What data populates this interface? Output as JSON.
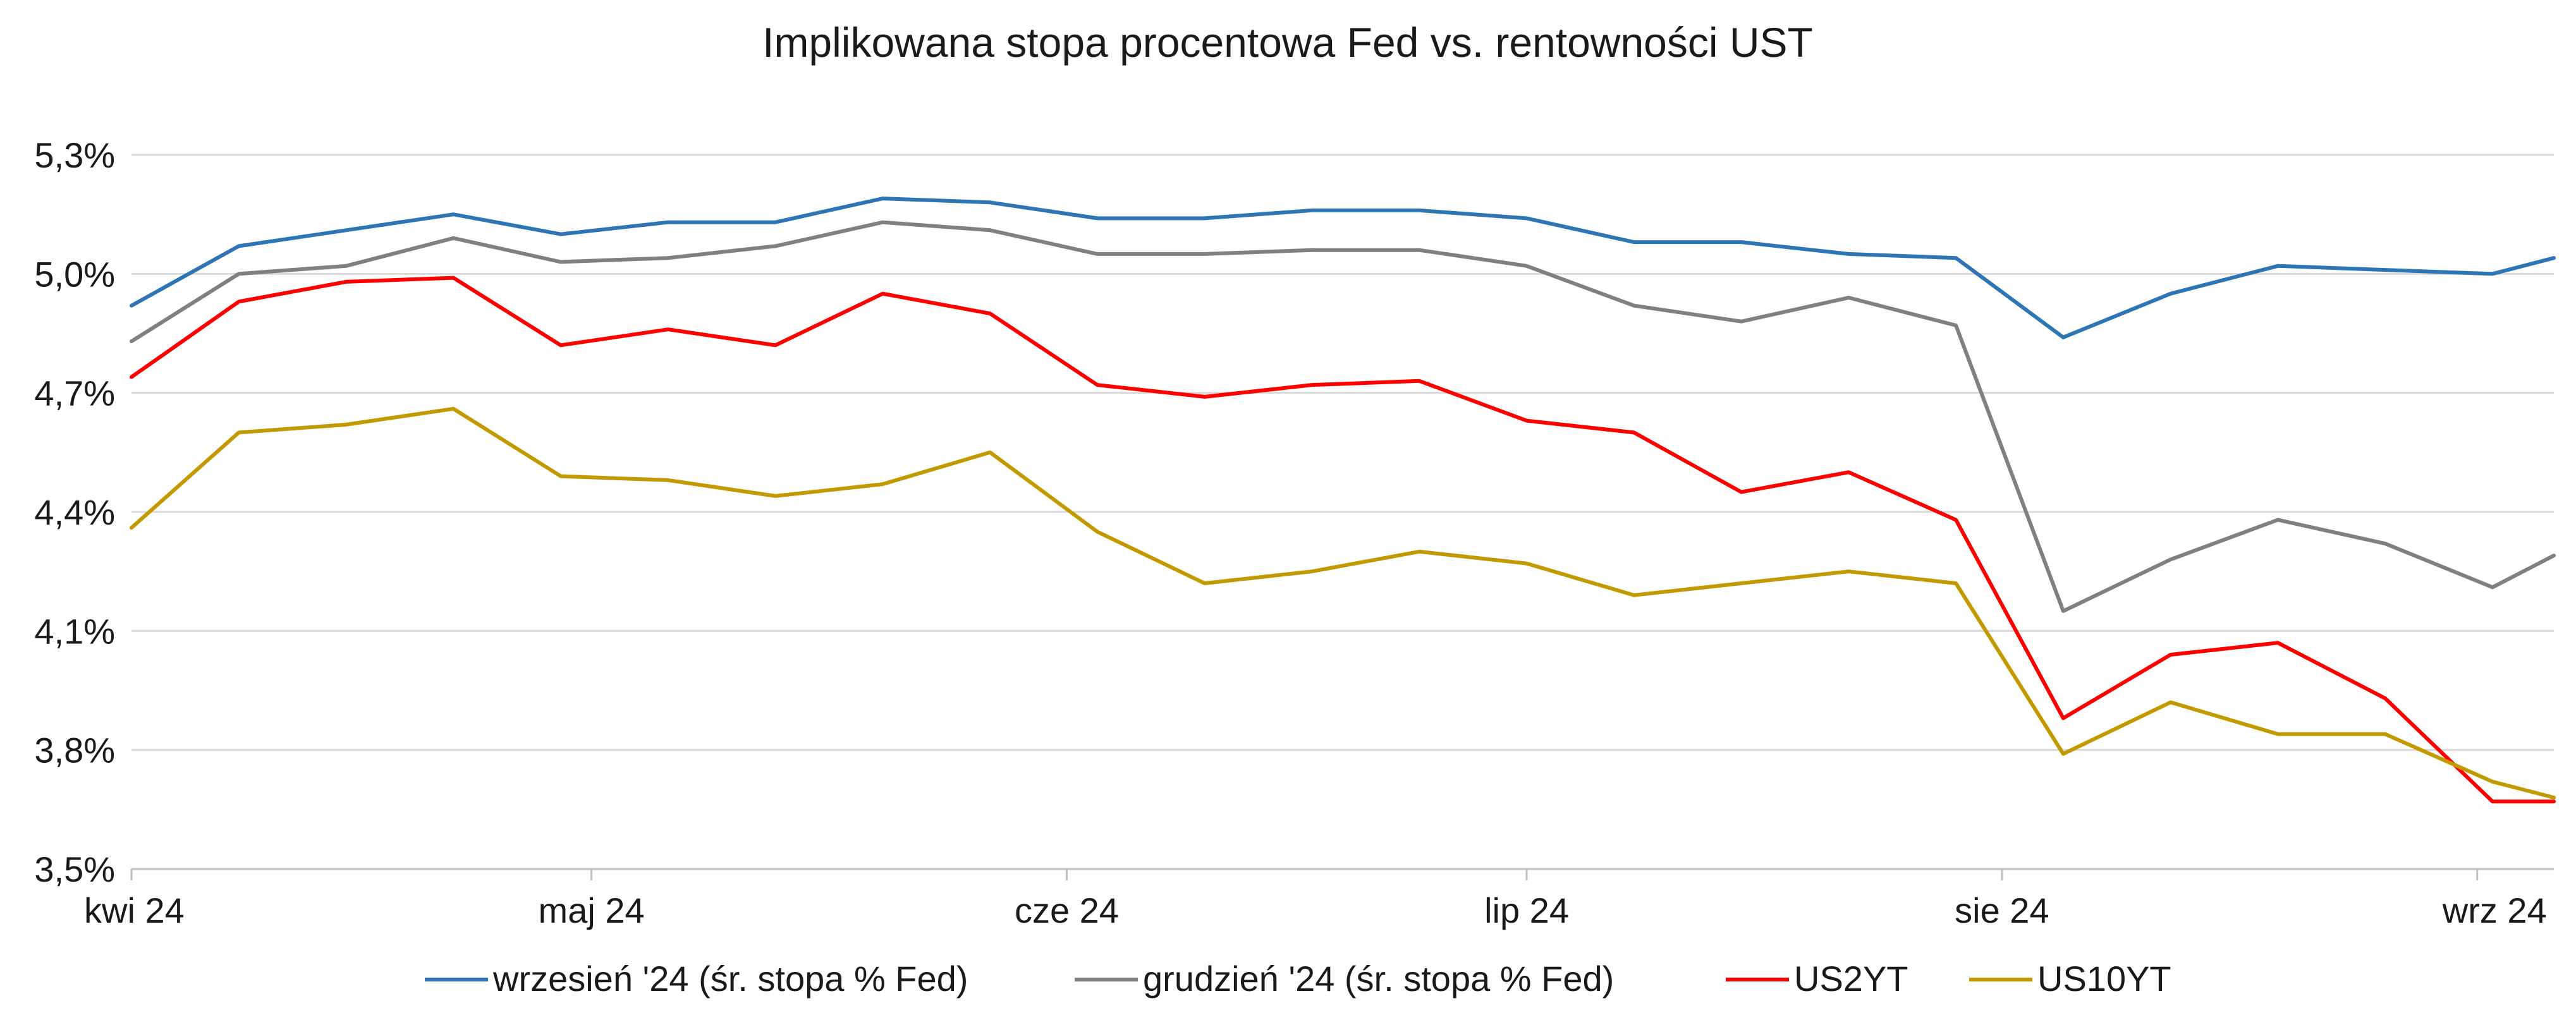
{
  "chart_data": {
    "type": "line",
    "title": "Implikowana stopa procentowa Fed vs. rentowności UST",
    "xlabel": "",
    "ylabel": "",
    "ylim": [
      3.5,
      5.3
    ],
    "yticks": [
      {
        "value": 3.5,
        "label": "3,5%"
      },
      {
        "value": 3.8,
        "label": "3,8%"
      },
      {
        "value": 4.1,
        "label": "4,1%"
      },
      {
        "value": 4.4,
        "label": "4,4%"
      },
      {
        "value": 4.7,
        "label": "4,7%"
      },
      {
        "value": 5.0,
        "label": "5,0%"
      },
      {
        "value": 5.3,
        "label": "5,3%"
      }
    ],
    "xlim": [
      "2024-04-01",
      "2024-09-06"
    ],
    "xticks": [
      {
        "date": "2024-04-01",
        "label": "kwi 24"
      },
      {
        "date": "2024-05-01",
        "label": "maj 24"
      },
      {
        "date": "2024-06-01",
        "label": "cze 24"
      },
      {
        "date": "2024-07-01",
        "label": "lip 24"
      },
      {
        "date": "2024-08-01",
        "label": "sie 24"
      },
      {
        "date": "2024-09-01",
        "label": "wrz 24"
      }
    ],
    "grid": true,
    "legend": "bottom",
    "x": [
      "2024-04-01",
      "2024-04-08",
      "2024-04-15",
      "2024-04-22",
      "2024-04-29",
      "2024-05-06",
      "2024-05-13",
      "2024-05-20",
      "2024-05-27",
      "2024-06-03",
      "2024-06-10",
      "2024-06-17",
      "2024-06-24",
      "2024-07-01",
      "2024-07-08",
      "2024-07-15",
      "2024-07-22",
      "2024-07-29",
      "2024-08-05",
      "2024-08-12",
      "2024-08-19",
      "2024-08-26",
      "2024-09-02",
      "2024-09-06"
    ],
    "series": [
      {
        "name": "wrzesień '24 (śr. stopa % Fed)",
        "color": "#2e75b6",
        "values": [
          4.92,
          5.07,
          5.11,
          5.15,
          5.1,
          5.13,
          5.13,
          5.19,
          5.18,
          5.14,
          5.14,
          5.16,
          5.16,
          5.14,
          5.08,
          5.08,
          5.05,
          5.04,
          4.84,
          4.95,
          5.02,
          5.01,
          5.0,
          5.04
        ]
      },
      {
        "name": "grudzień '24 (śr. stopa % Fed)",
        "color": "#808080",
        "values": [
          4.83,
          5.0,
          5.02,
          5.09,
          5.03,
          5.04,
          5.07,
          5.13,
          5.11,
          5.05,
          5.05,
          5.06,
          5.06,
          5.02,
          4.92,
          4.88,
          4.94,
          4.87,
          4.15,
          4.28,
          4.38,
          4.32,
          4.21,
          4.29
        ]
      },
      {
        "name": "US2YT",
        "color": "#ff0000",
        "values": [
          4.74,
          4.93,
          4.98,
          4.99,
          4.82,
          4.86,
          4.82,
          4.95,
          4.9,
          4.72,
          4.69,
          4.72,
          4.73,
          4.63,
          4.6,
          4.45,
          4.5,
          4.38,
          3.88,
          4.04,
          4.07,
          3.93,
          3.67,
          3.67
        ]
      },
      {
        "name": "US10YT",
        "color": "#c29a00",
        "values": [
          4.36,
          4.6,
          4.62,
          4.66,
          4.49,
          4.48,
          4.44,
          4.47,
          4.55,
          4.35,
          4.22,
          4.25,
          4.3,
          4.27,
          4.19,
          4.22,
          4.25,
          4.22,
          3.79,
          3.92,
          3.84,
          3.84,
          3.72,
          3.68
        ]
      }
    ]
  }
}
